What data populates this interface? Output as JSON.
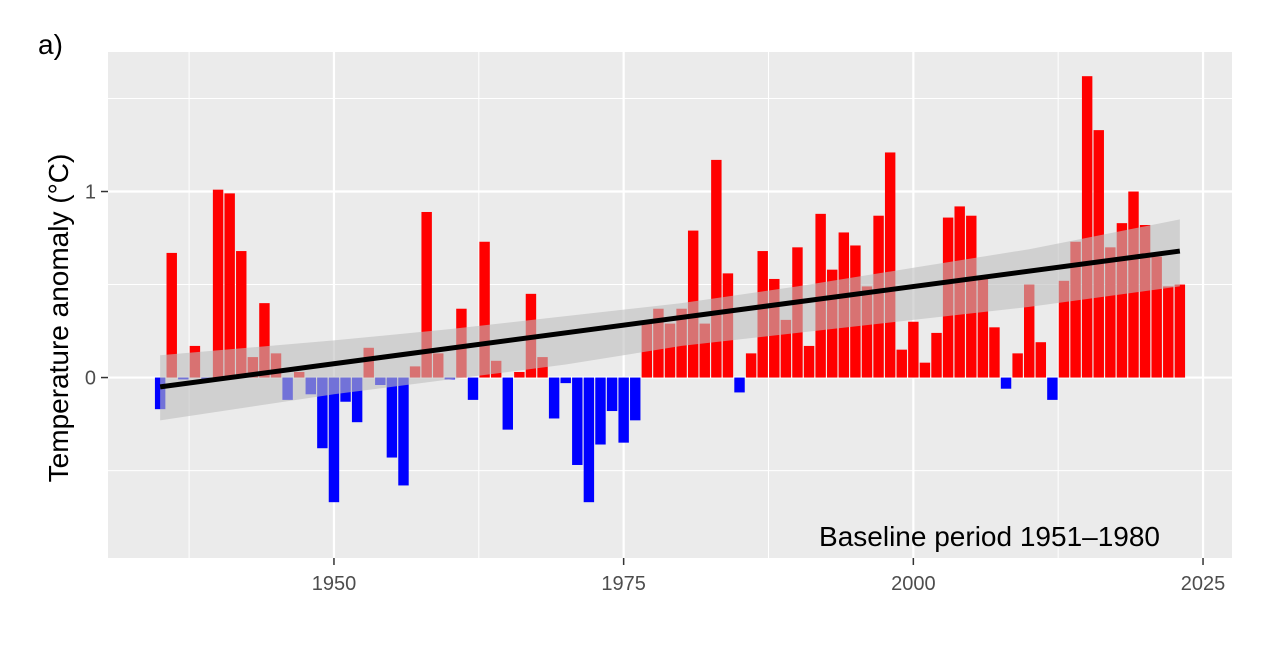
{
  "panel_label": "a)",
  "chart_data": {
    "type": "bar",
    "ylabel": "Temperature anomaly (°C)",
    "xlabel": "",
    "annotation": "Baseline period 1951–1980",
    "xlim": [
      1930.5,
      2027.5
    ],
    "ylim": [
      -0.97,
      1.75
    ],
    "x_ticks": [
      1950,
      1975,
      2000,
      2025
    ],
    "y_ticks": [
      0,
      1
    ],
    "grid": true,
    "colors": {
      "positive": "#ff0000",
      "negative": "#0000ff",
      "trend": "#000000",
      "band": "#bebebe",
      "panel": "#ebebeb",
      "grid": "#ffffff"
    },
    "x": [
      1935,
      1936,
      1937,
      1938,
      1939,
      1940,
      1941,
      1942,
      1943,
      1944,
      1945,
      1946,
      1947,
      1948,
      1949,
      1950,
      1951,
      1952,
      1953,
      1954,
      1955,
      1956,
      1957,
      1958,
      1959,
      1960,
      1961,
      1962,
      1963,
      1964,
      1965,
      1966,
      1967,
      1968,
      1969,
      1970,
      1971,
      1972,
      1973,
      1974,
      1975,
      1976,
      1977,
      1978,
      1979,
      1980,
      1981,
      1982,
      1983,
      1984,
      1985,
      1986,
      1987,
      1988,
      1989,
      1990,
      1991,
      1992,
      1993,
      1994,
      1995,
      1996,
      1997,
      1998,
      1999,
      2000,
      2001,
      2002,
      2003,
      2004,
      2005,
      2006,
      2007,
      2008,
      2009,
      2010,
      2011,
      2012,
      2013,
      2014,
      2015,
      2016,
      2017,
      2018,
      2019,
      2020,
      2021,
      2022,
      2023
    ],
    "values": [
      -0.17,
      0.67,
      -0.01,
      0.17,
      -0.01,
      1.01,
      0.99,
      0.68,
      0.11,
      0.4,
      0.13,
      -0.12,
      0.03,
      -0.09,
      -0.38,
      -0.67,
      -0.13,
      -0.24,
      0.16,
      -0.04,
      -0.43,
      -0.58,
      0.06,
      0.89,
      0.13,
      -0.01,
      0.37,
      -0.12,
      0.73,
      0.09,
      -0.28,
      0.03,
      0.45,
      0.11,
      -0.22,
      -0.03,
      -0.47,
      -0.67,
      -0.36,
      -0.18,
      -0.35,
      -0.23,
      0.29,
      0.37,
      0.29,
      0.37,
      0.79,
      0.29,
      1.17,
      0.56,
      -0.08,
      0.13,
      0.68,
      0.53,
      0.31,
      0.7,
      0.17,
      0.88,
      0.58,
      0.78,
      0.71,
      0.49,
      0.87,
      1.21,
      0.15,
      0.3,
      0.08,
      0.24,
      0.86,
      0.92,
      0.87,
      0.53,
      0.27,
      -0.06,
      0.13,
      0.5,
      0.19,
      -0.12,
      0.52,
      0.73,
      1.62,
      1.33,
      0.7,
      0.83,
      1.0,
      0.82,
      0.65,
      0.49,
      0.5
    ],
    "trend": {
      "x": [
        1935,
        2023
      ],
      "y": [
        -0.05,
        0.68
      ]
    },
    "confidence_band": {
      "x": [
        1935,
        1950,
        1960,
        1970,
        1980,
        1990,
        2000,
        2010,
        2023
      ],
      "upper": [
        0.12,
        0.2,
        0.26,
        0.33,
        0.4,
        0.49,
        0.59,
        0.69,
        0.85
      ],
      "lower": [
        -0.23,
        -0.09,
        -0.01,
        0.07,
        0.17,
        0.24,
        0.31,
        0.38,
        0.49
      ]
    }
  }
}
